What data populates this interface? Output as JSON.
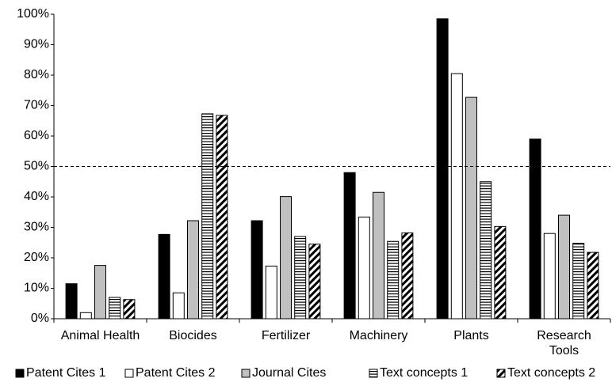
{
  "chart_data": {
    "type": "bar",
    "categories": [
      "Animal Health",
      "Biocides",
      "Fertilizer",
      "Machinery",
      "Plants",
      "Research Tools"
    ],
    "series": [
      {
        "name": "Patent Cites 1",
        "color": "#000000",
        "pattern": "solid",
        "values": [
          11.5,
          27.7,
          32.2,
          48,
          98.5,
          59
        ]
      },
      {
        "name": "Patent Cites 2",
        "color": "#ffffff",
        "pattern": "solid",
        "values": [
          2,
          8.5,
          17.3,
          33.4,
          80.5,
          28
        ]
      },
      {
        "name": "Journal Cites",
        "color": "#c0c0c0",
        "pattern": "solid",
        "values": [
          17.5,
          32.2,
          40.1,
          41.5,
          72.7,
          34
        ]
      },
      {
        "name": "Text concepts 1",
        "color": "#000000",
        "pattern": "horizontal",
        "values": [
          7,
          67.3,
          27,
          25.4,
          45,
          24.8
        ]
      },
      {
        "name": "Text concepts 2",
        "color": "#000000",
        "pattern": "diagonal",
        "values": [
          6.3,
          66.8,
          24.5,
          28.2,
          30.3,
          21.8
        ]
      }
    ],
    "ylim": [
      0,
      100
    ],
    "yticks": [
      {
        "value": 0,
        "label": "0%"
      },
      {
        "value": 10,
        "label": "10%"
      },
      {
        "value": 20,
        "label": "20%"
      },
      {
        "value": 30,
        "label": "30%"
      },
      {
        "value": 40,
        "label": "40%"
      },
      {
        "value": 50,
        "label": "50%"
      },
      {
        "value": 60,
        "label": "60%"
      },
      {
        "value": 70,
        "label": "70%"
      },
      {
        "value": 80,
        "label": "80%"
      },
      {
        "value": 90,
        "label": "90%"
      },
      {
        "value": 100,
        "label": "100%"
      }
    ],
    "reference_line": 50,
    "grid": false,
    "legend": "bottom"
  }
}
